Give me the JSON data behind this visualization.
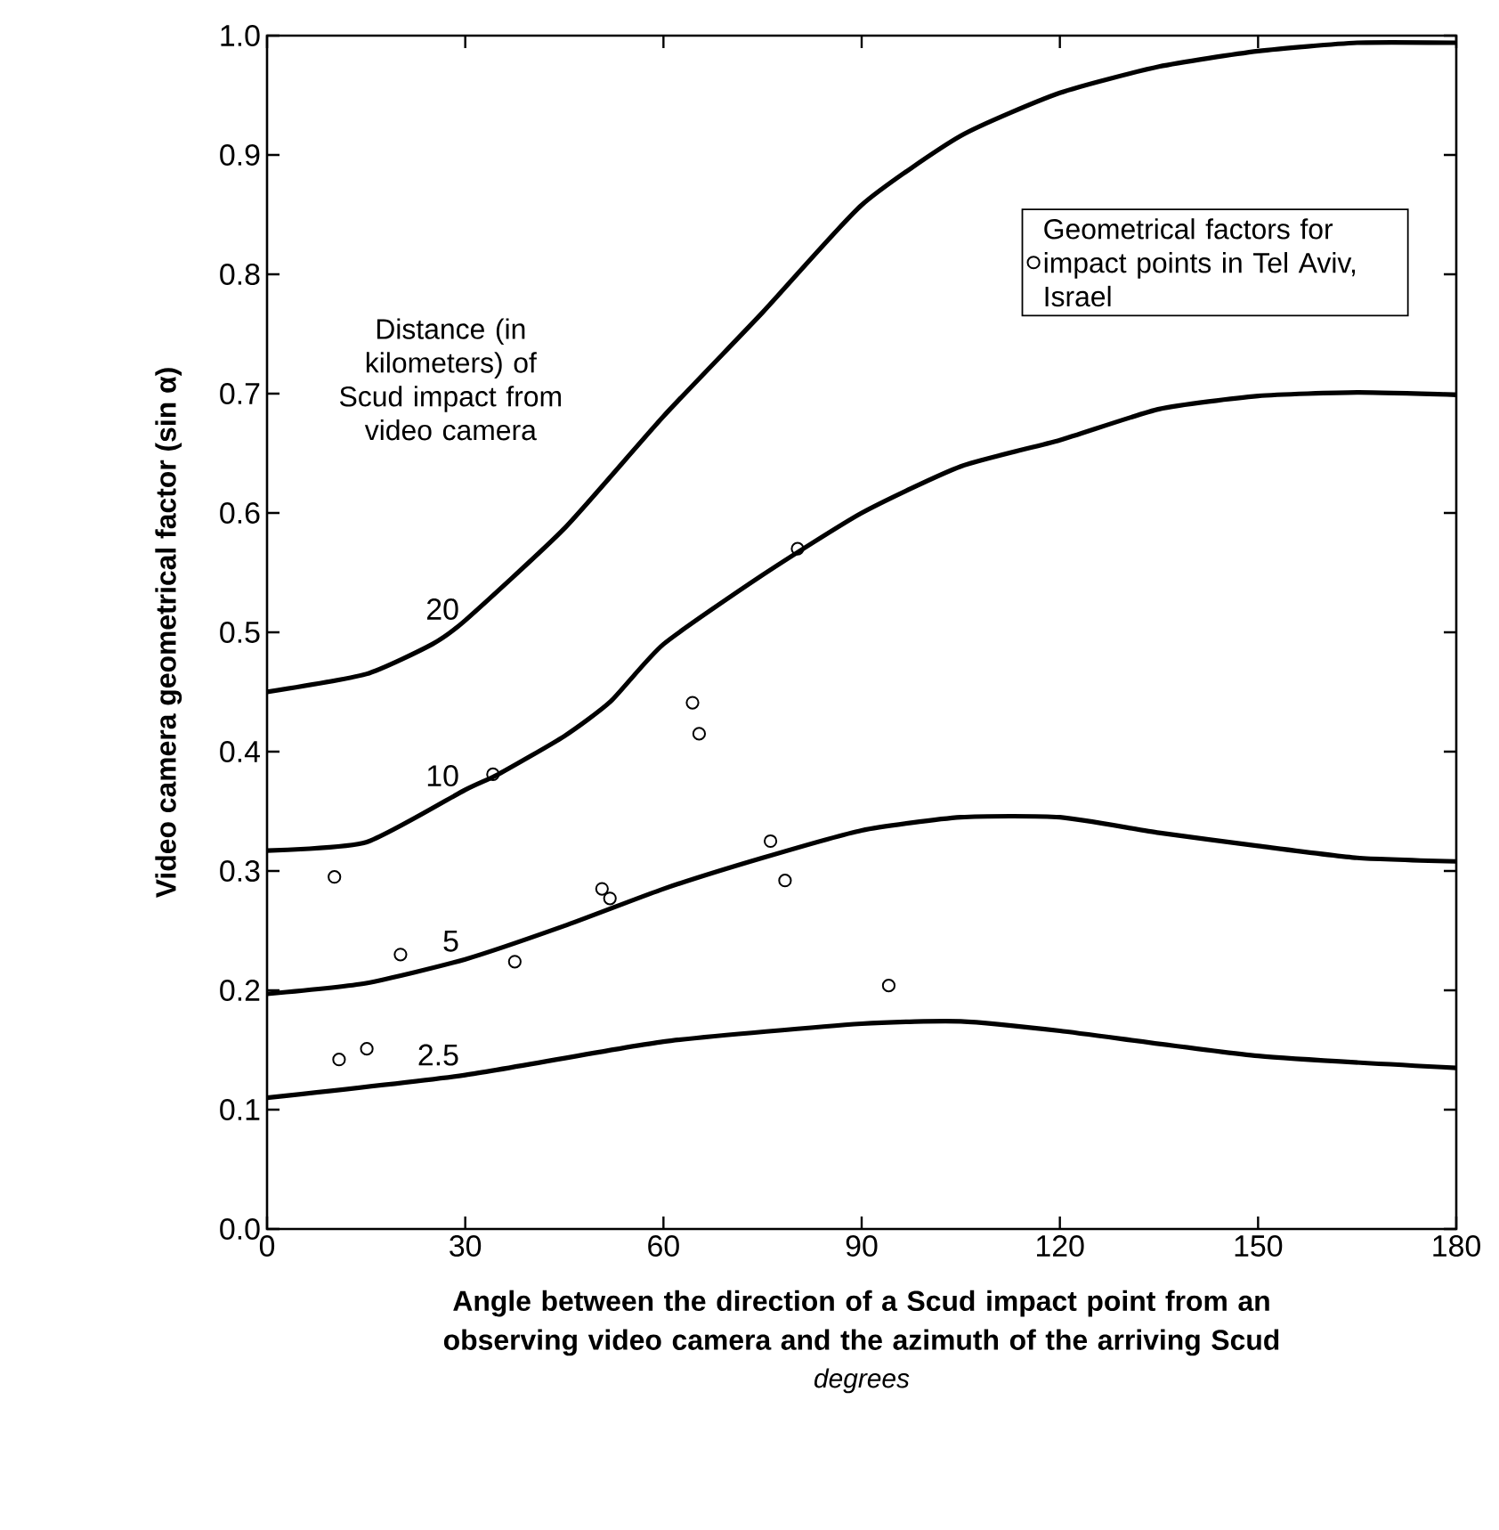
{
  "chart_data": {
    "type": "line",
    "xlabel": "Angle between the direction of a Scud impact point from an observing video camera and the azimuth of the arriving Scud",
    "ylabel": "Video camera geometrical factor (sin α)",
    "xlim": [
      0,
      180
    ],
    "ylim": [
      0,
      1.0
    ],
    "xticks": [
      0,
      30,
      60,
      90,
      120,
      150,
      180
    ],
    "yticks": [
      {
        "value": 0,
        "label": "0.0"
      },
      {
        "value": 0.1,
        "label": "0.1"
      },
      {
        "value": 0.2,
        "label": "0.2"
      },
      {
        "value": 0.3,
        "label": "0.3"
      },
      {
        "value": 0.4,
        "label": "0.4"
      },
      {
        "value": 0.5,
        "label": "0.5"
      },
      {
        "value": 0.6,
        "label": "0.6"
      },
      {
        "value": 0.7,
        "label": "0.7"
      },
      {
        "value": 0.8,
        "label": "0.8"
      },
      {
        "value": 0.9,
        "label": "0.9"
      },
      {
        "value": 1.0,
        "label": "1.0"
      }
    ],
    "legend": "top right",
    "series": [
      {
        "name": "20",
        "color": "#000000",
        "x": [
          0,
          15,
          25,
          30,
          45,
          60,
          75,
          90,
          105,
          120,
          135,
          150,
          165,
          180
        ],
        "values": [
          0.45,
          0.465,
          0.49,
          0.51,
          0.587,
          0.681,
          0.768,
          0.858,
          0.916,
          0.952,
          0.974,
          0.987,
          0.994,
          0.994
        ]
      },
      {
        "name": "10",
        "color": "#000000",
        "x": [
          0,
          15,
          30,
          35,
          45,
          52,
          60,
          75,
          90,
          105,
          120,
          135,
          150,
          165,
          180
        ],
        "values": [
          0.317,
          0.324,
          0.368,
          0.381,
          0.413,
          0.442,
          0.49,
          0.548,
          0.6,
          0.639,
          0.661,
          0.687,
          0.698,
          0.701,
          0.699
        ]
      },
      {
        "name": "5",
        "color": "#000000",
        "x": [
          0,
          15,
          30,
          45,
          60,
          75,
          90,
          105,
          120,
          135,
          150,
          165,
          180
        ],
        "values": [
          0.197,
          0.206,
          0.226,
          0.254,
          0.285,
          0.311,
          0.334,
          0.345,
          0.345,
          0.332,
          0.321,
          0.311,
          0.308
        ]
      },
      {
        "name": "2.5",
        "color": "#000000",
        "x": [
          0,
          30,
          60,
          90,
          105,
          120,
          150,
          180
        ],
        "values": [
          0.11,
          0.129,
          0.157,
          0.172,
          0.174,
          0.166,
          0.145,
          0.135
        ]
      },
      {
        "type": "scatter",
        "name": "Geometrical factors for impact points in Tel Aviv, Israel",
        "color": "#000000",
        "marker": "circle",
        "x": [
          10.2,
          10.9,
          15.1,
          20.2,
          34.2,
          37.5,
          50.7,
          51.9,
          64.4,
          65.4,
          76.2,
          78.4,
          80.3,
          94.1
        ],
        "values": [
          0.295,
          0.142,
          0.151,
          0.23,
          0.381,
          0.224,
          0.285,
          0.277,
          0.441,
          0.415,
          0.325,
          0.292,
          0.57,
          0.204
        ]
      }
    ],
    "annotations": [
      "Distance (in kilometers) of Scud impact from video camera",
      "degrees"
    ]
  }
}
